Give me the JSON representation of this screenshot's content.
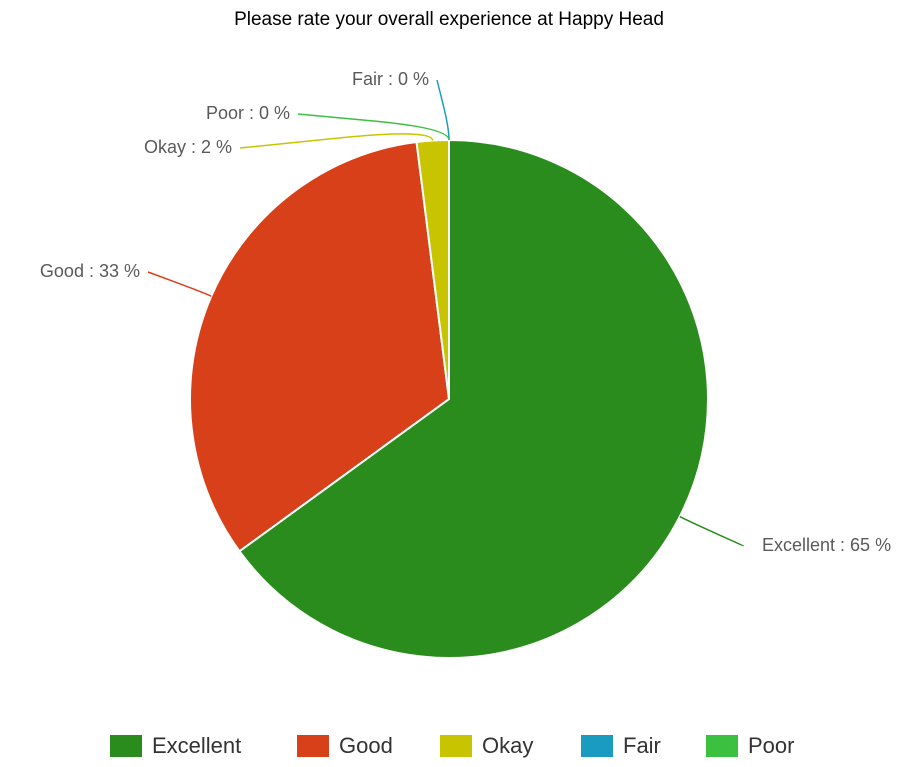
{
  "chart_data": {
    "type": "pie",
    "title": "Please rate your overall experience at Happy Head",
    "categories": [
      "Excellent",
      "Good",
      "Okay",
      "Fair",
      "Poor"
    ],
    "values": [
      65,
      33,
      2,
      0,
      0
    ],
    "value_labels": [
      "Excellent : 65 %",
      "Good : 33 %",
      "Okay : 2 %",
      "Fair : 0 %",
      "Poor : 0 %"
    ],
    "colors": [
      "#2a8c1c",
      "#d8401a",
      "#c9c400",
      "#1a9cc0",
      "#3cc040"
    ],
    "legend": "bottom"
  }
}
